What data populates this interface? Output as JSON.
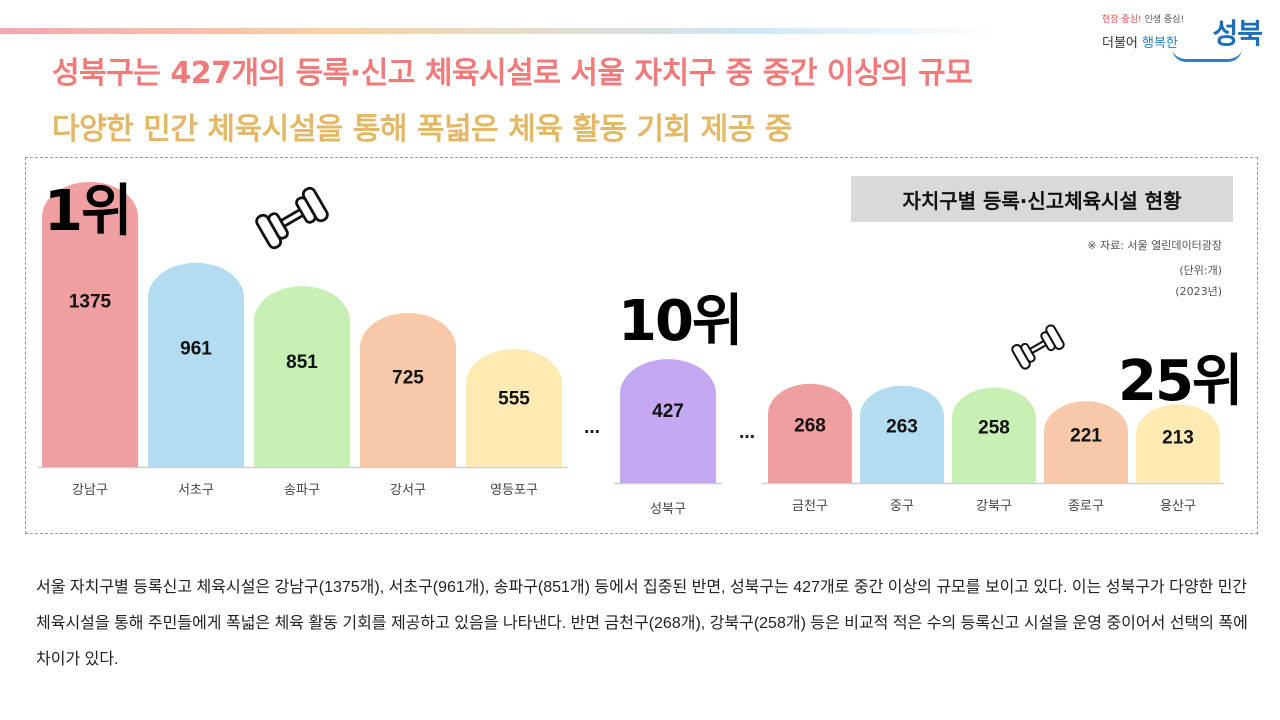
{
  "logo": {
    "slogan_small_1": "현장 중심!",
    "slogan_small_2": "인생 중심!",
    "slogan_mid_1": "더불어",
    "slogan_mid_2": "행복한",
    "name": "성북"
  },
  "headline": {
    "line1": "성북구는 427개의 등록·신고 체육시설로 서울 자치구 중 중간 이상의 규모",
    "line2": "다양한 민간 체육시설을 통해 폭넓은 체육 활동 기회 제공 중"
  },
  "ranks": {
    "first": "1위",
    "tenth": "10위",
    "last": "25위"
  },
  "ellipsis": "…",
  "chart_data": {
    "type": "bar",
    "title": "자치구별 등록·신고체육시설 현황",
    "source": "※ 자료: 서울 열린데이터광장",
    "unit": "(단위:개)",
    "year": "(2023년)",
    "categories": [
      "강남구",
      "서초구",
      "송파구",
      "강서구",
      "영등포구",
      "성북구",
      "금천구",
      "중구",
      "강북구",
      "종로구",
      "용산구"
    ],
    "values": [
      1375,
      961,
      851,
      725,
      555,
      427,
      268,
      263,
      258,
      221,
      213
    ],
    "labels": [
      "1375",
      "961",
      "851",
      "725",
      "555",
      "427",
      "268",
      "263",
      "258",
      "221",
      "213"
    ],
    "colors": [
      "#ef9fa0",
      "#b4dcf0",
      "#c8efb4",
      "#f8c9a9",
      "#ffeab4",
      "#c4a8f2",
      "#ef9fa0",
      "#b4dcf0",
      "#c8efb4",
      "#f8c9a9",
      "#ffeab4"
    ]
  },
  "summary": "서울 자치구별 등록신고 체육시설은 강남구(1375개), 서초구(961개), 송파구(851개) 등에서 집중된 반면, 성북구는 427개로 중간 이상의 규모를 보이고 있다. 이는 성북구가 다양한 민간 체육시설을 통해 주민들에게 폭넓은 체육 활동 기회를 제공하고 있음을 나타낸다. 반면 금천구(268개), 강북구(258개) 등은 비교적 적은 수의 등록신고 시설을 운영 중이어서 선택의 폭에 차이가 있다."
}
